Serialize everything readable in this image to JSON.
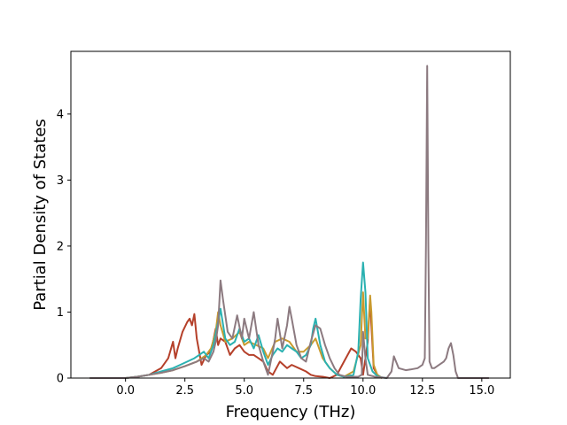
{
  "chart_data": {
    "type": "line",
    "title": "",
    "xlabel": "Frequency (THz)",
    "ylabel": "Partial Density of States",
    "xlim": [
      -2.3,
      16.2
    ],
    "ylim": [
      0,
      4.95
    ],
    "xticks": [
      0.0,
      2.5,
      5.0,
      7.5,
      10.0,
      12.5,
      15.0
    ],
    "xtick_labels": [
      "0.0",
      "2.5",
      "5.0",
      "7.5",
      "10.0",
      "12.5",
      "15.0"
    ],
    "yticks": [
      0,
      1,
      2,
      3,
      4
    ],
    "ytick_labels": [
      "0",
      "1",
      "2",
      "3",
      "4"
    ],
    "grid": false,
    "series": [
      {
        "color": "#b5402a",
        "x": [
          -1.5,
          0.0,
          0.5,
          1.0,
          1.5,
          1.8,
          2.0,
          2.1,
          2.2,
          2.4,
          2.6,
          2.7,
          2.8,
          2.9,
          3.0,
          3.2,
          3.4,
          3.6,
          3.8,
          3.9,
          4.0,
          4.2,
          4.4,
          4.6,
          4.8,
          5.0,
          5.2,
          5.4,
          5.6,
          5.8,
          6.0,
          6.2,
          6.5,
          6.8,
          7.0,
          7.3,
          7.6,
          7.8,
          8.0,
          8.3,
          8.6,
          8.9,
          9.2,
          9.5,
          9.7,
          9.9,
          10.0,
          10.1,
          10.2,
          10.3,
          10.35,
          10.45,
          10.6,
          10.8
        ],
        "y": [
          0.0,
          0.0,
          0.02,
          0.05,
          0.15,
          0.3,
          0.55,
          0.3,
          0.45,
          0.7,
          0.85,
          0.9,
          0.8,
          0.97,
          0.6,
          0.2,
          0.35,
          0.4,
          0.75,
          0.5,
          0.6,
          0.55,
          0.35,
          0.45,
          0.5,
          0.4,
          0.35,
          0.35,
          0.3,
          0.25,
          0.1,
          0.05,
          0.25,
          0.15,
          0.2,
          0.15,
          0.1,
          0.05,
          0.03,
          0.02,
          0.0,
          0.05,
          0.25,
          0.45,
          0.4,
          0.3,
          0.05,
          0.3,
          0.55,
          1.2,
          0.8,
          0.15,
          0.05,
          0.0
        ]
      },
      {
        "color": "#c99a2e",
        "x": [
          -1.5,
          0.0,
          0.5,
          1.0,
          1.5,
          2.0,
          2.5,
          3.0,
          3.4,
          3.6,
          3.8,
          3.9,
          4.0,
          4.2,
          4.5,
          4.8,
          5.0,
          5.2,
          5.5,
          5.8,
          6.0,
          6.3,
          6.6,
          6.9,
          7.2,
          7.5,
          7.8,
          8.0,
          8.3,
          8.6,
          8.9,
          9.2,
          9.6,
          9.9,
          10.0,
          10.1,
          10.2,
          10.3,
          10.35,
          10.45,
          10.6,
          10.8
        ],
        "y": [
          0.0,
          0.0,
          0.02,
          0.05,
          0.08,
          0.12,
          0.18,
          0.25,
          0.35,
          0.45,
          0.7,
          1.0,
          0.8,
          0.55,
          0.6,
          0.7,
          0.5,
          0.55,
          0.5,
          0.45,
          0.3,
          0.55,
          0.6,
          0.55,
          0.4,
          0.4,
          0.5,
          0.6,
          0.3,
          0.15,
          0.05,
          0.02,
          0.1,
          0.5,
          1.3,
          0.6,
          0.6,
          1.25,
          1.0,
          0.2,
          0.05,
          0.0
        ]
      },
      {
        "color": "#2ab1b1",
        "x": [
          -1.5,
          0.0,
          0.5,
          1.0,
          1.5,
          2.0,
          2.3,
          2.6,
          2.9,
          3.1,
          3.3,
          3.5,
          3.7,
          3.9,
          4.0,
          4.2,
          4.4,
          4.6,
          4.8,
          5.0,
          5.2,
          5.4,
          5.6,
          5.8,
          6.0,
          6.2,
          6.4,
          6.6,
          6.8,
          7.0,
          7.2,
          7.4,
          7.6,
          7.8,
          7.9,
          8.0,
          8.2,
          8.4,
          8.6,
          8.9,
          9.2,
          9.6,
          9.8,
          9.9,
          10.0,
          10.1,
          10.2,
          10.4,
          10.6,
          10.8,
          11.0
        ],
        "y": [
          0.0,
          0.0,
          0.02,
          0.05,
          0.1,
          0.15,
          0.2,
          0.25,
          0.3,
          0.35,
          0.4,
          0.3,
          0.5,
          0.85,
          1.05,
          0.6,
          0.5,
          0.55,
          0.75,
          0.55,
          0.6,
          0.45,
          0.65,
          0.4,
          0.2,
          0.35,
          0.45,
          0.4,
          0.5,
          0.45,
          0.4,
          0.3,
          0.35,
          0.5,
          0.75,
          0.9,
          0.5,
          0.25,
          0.15,
          0.05,
          0.02,
          0.05,
          0.4,
          1.2,
          1.75,
          1.3,
          0.3,
          0.1,
          0.03,
          0.01,
          0.0
        ]
      },
      {
        "color": "#8c7a80",
        "x": [
          -1.5,
          0.0,
          0.5,
          1.0,
          1.5,
          2.0,
          2.5,
          3.0,
          3.3,
          3.5,
          3.7,
          3.8,
          3.9,
          4.0,
          4.1,
          4.3,
          4.5,
          4.7,
          4.9,
          5.0,
          5.2,
          5.4,
          5.6,
          5.8,
          6.0,
          6.2,
          6.3,
          6.4,
          6.6,
          6.8,
          6.9,
          7.0,
          7.2,
          7.4,
          7.6,
          7.8,
          8.0,
          8.2,
          8.4,
          8.6,
          8.8,
          9.0,
          9.3,
          9.6,
          9.8,
          9.95,
          10.0,
          10.1,
          10.2,
          10.5,
          10.8,
          11.0,
          11.2,
          11.3,
          11.5,
          11.8,
          12.0,
          12.3,
          12.5,
          12.6,
          12.65,
          12.7,
          12.75,
          12.8,
          12.9,
          13.0,
          13.2,
          13.4,
          13.5,
          13.6,
          13.7,
          13.8,
          13.9,
          14.0,
          15.3
        ],
        "y": [
          0.0,
          0.0,
          0.02,
          0.05,
          0.08,
          0.12,
          0.18,
          0.25,
          0.3,
          0.25,
          0.4,
          0.55,
          0.8,
          1.48,
          1.2,
          0.7,
          0.6,
          0.95,
          0.6,
          0.9,
          0.6,
          1.0,
          0.5,
          0.25,
          0.05,
          0.4,
          0.6,
          0.9,
          0.45,
          0.8,
          1.08,
          0.9,
          0.5,
          0.3,
          0.25,
          0.55,
          0.8,
          0.75,
          0.5,
          0.3,
          0.15,
          0.05,
          0.02,
          0.02,
          0.02,
          0.05,
          0.7,
          0.3,
          0.05,
          0.02,
          0.01,
          0.0,
          0.1,
          0.33,
          0.15,
          0.12,
          0.13,
          0.15,
          0.2,
          0.3,
          2.0,
          4.73,
          2.0,
          0.25,
          0.15,
          0.15,
          0.2,
          0.25,
          0.3,
          0.45,
          0.53,
          0.35,
          0.1,
          0.0,
          0.0
        ]
      }
    ]
  }
}
